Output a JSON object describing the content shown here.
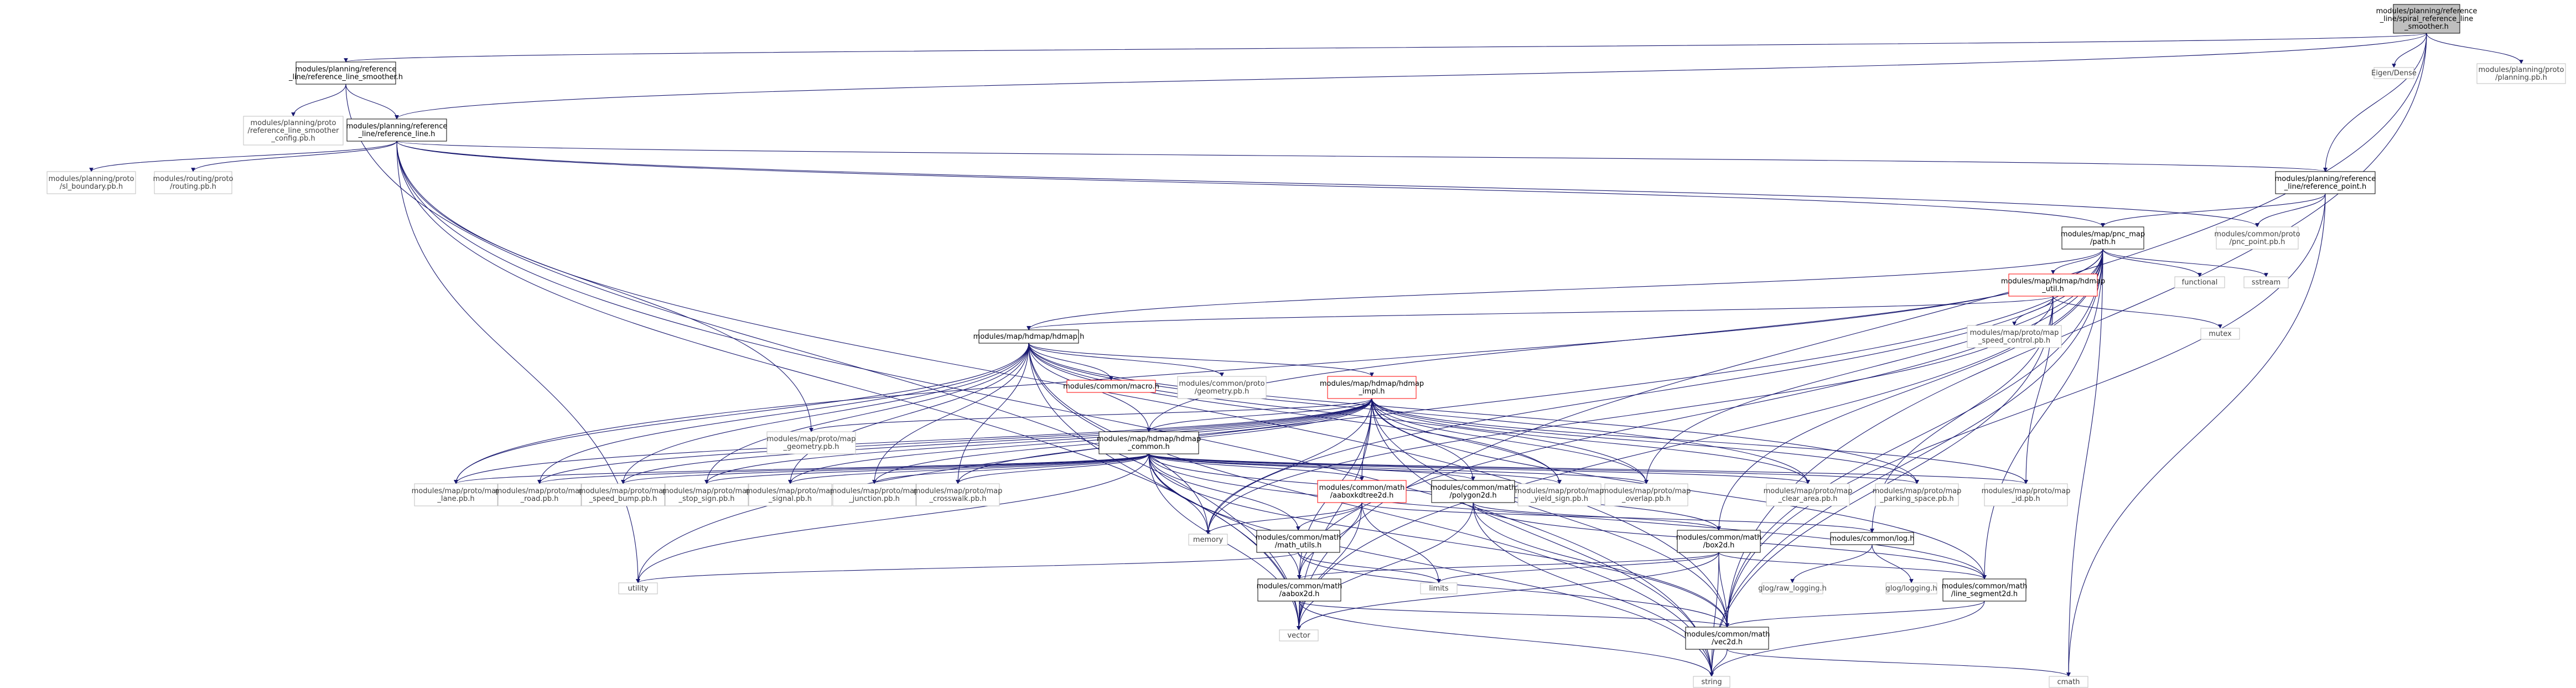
{
  "colors": {
    "edge_blue": "#191970",
    "edge_red": "#8b1a1a",
    "edge_green": "#006400",
    "root_fill": "#bfbfbf",
    "box_black": "#000000",
    "box_gray": "#bfbfbf",
    "box_red": "#ff0000",
    "text": "#000000",
    "text_gray": "#404040"
  },
  "nodes": [
    {
      "id": "root",
      "lines": [
        "modules/planning/reference",
        "_line/spiral_reference_line",
        "_smoother.h"
      ],
      "style": "root"
    },
    {
      "id": "rls",
      "lines": [
        "modules/planning/reference",
        "_line/reference_line_smoother.h"
      ],
      "style": "black"
    },
    {
      "id": "eigen",
      "lines": [
        "Eigen/Dense"
      ],
      "style": "gray"
    },
    {
      "id": "planpb",
      "lines": [
        "modules/planning/proto",
        "/planning.pb.h"
      ],
      "style": "gray"
    },
    {
      "id": "smcfg",
      "lines": [
        "modules/planning/proto",
        "/reference_line_smoother",
        "_config.pb.h"
      ],
      "style": "gray"
    },
    {
      "id": "rl",
      "lines": [
        "modules/planning/reference",
        "_line/reference_line.h"
      ],
      "style": "black"
    },
    {
      "id": "slb",
      "lines": [
        "modules/planning/proto",
        "/sl_boundary.pb.h"
      ],
      "style": "gray"
    },
    {
      "id": "routing",
      "lines": [
        "modules/routing/proto",
        "/routing.pb.h"
      ],
      "style": "gray"
    },
    {
      "id": "rp",
      "lines": [
        "modules/planning/reference",
        "_line/reference_point.h"
      ],
      "style": "black"
    },
    {
      "id": "pncpath",
      "lines": [
        "modules/map/pnc_map",
        "/path.h"
      ],
      "style": "black"
    },
    {
      "id": "pncpoint",
      "lines": [
        "modules/common/proto",
        "/pnc_point.pb.h"
      ],
      "style": "gray"
    },
    {
      "id": "functional",
      "lines": [
        "functional"
      ],
      "style": "gray"
    },
    {
      "id": "sstream",
      "lines": [
        "sstream"
      ],
      "style": "gray"
    },
    {
      "id": "hdutil",
      "lines": [
        "modules/map/hdmap/hdmap",
        "_util.h"
      ],
      "style": "red"
    },
    {
      "id": "mutex",
      "lines": [
        "mutex"
      ],
      "style": "gray"
    },
    {
      "id": "speedctl",
      "lines": [
        "modules/map/proto/map",
        "_speed_control.pb.h"
      ],
      "style": "gray"
    },
    {
      "id": "hdmap",
      "lines": [
        "modules/map/hdmap/hdmap.h"
      ],
      "style": "black"
    },
    {
      "id": "macro",
      "lines": [
        "modules/common/macro.h"
      ],
      "style": "red"
    },
    {
      "id": "geompb",
      "lines": [
        "modules/common/proto",
        "/geometry.pb.h"
      ],
      "style": "gray"
    },
    {
      "id": "impl",
      "lines": [
        "modules/map/hdmap/hdmap",
        "_impl.h"
      ],
      "style": "red"
    },
    {
      "id": "mapgeom",
      "lines": [
        "modules/map/proto/map",
        "_geometry.pb.h"
      ],
      "style": "gray"
    },
    {
      "id": "common",
      "lines": [
        "modules/map/hdmap/hdmap",
        "_common.h"
      ],
      "style": "black"
    },
    {
      "id": "lane",
      "lines": [
        "modules/map/proto/map",
        "_lane.pb.h"
      ],
      "style": "gray"
    },
    {
      "id": "road",
      "lines": [
        "modules/map/proto/map",
        "_road.pb.h"
      ],
      "style": "gray"
    },
    {
      "id": "speedbump",
      "lines": [
        "modules/map/proto/map",
        "_speed_bump.pb.h"
      ],
      "style": "gray"
    },
    {
      "id": "stopsign",
      "lines": [
        "modules/map/proto/map",
        "_stop_sign.pb.h"
      ],
      "style": "gray"
    },
    {
      "id": "signal",
      "lines": [
        "modules/map/proto/map",
        "_signal.pb.h"
      ],
      "style": "gray"
    },
    {
      "id": "junction",
      "lines": [
        "modules/map/proto/map",
        "_junction.pb.h"
      ],
      "style": "gray"
    },
    {
      "id": "crosswalk",
      "lines": [
        "modules/map/proto/map",
        "_crosswalk.pb.h"
      ],
      "style": "gray"
    },
    {
      "id": "kdtree",
      "lines": [
        "modules/common/math",
        "/aaboxkdtree2d.h"
      ],
      "style": "red"
    },
    {
      "id": "polygon",
      "lines": [
        "modules/common/math",
        "/polygon2d.h"
      ],
      "style": "black"
    },
    {
      "id": "yield",
      "lines": [
        "modules/map/proto/map",
        "_yield_sign.pb.h"
      ],
      "style": "gray"
    },
    {
      "id": "overlap",
      "lines": [
        "modules/map/proto/map",
        "_overlap.pb.h"
      ],
      "style": "gray"
    },
    {
      "id": "cleararea",
      "lines": [
        "modules/map/proto/map",
        "_clear_area.pb.h"
      ],
      "style": "gray"
    },
    {
      "id": "parking",
      "lines": [
        "modules/map/proto/map",
        "_parking_space.pb.h"
      ],
      "style": "gray"
    },
    {
      "id": "mapid",
      "lines": [
        "modules/map/proto/map",
        "_id.pb.h"
      ],
      "style": "gray"
    },
    {
      "id": "memory",
      "lines": [
        "memory"
      ],
      "style": "gray"
    },
    {
      "id": "mathutils",
      "lines": [
        "modules/common/math",
        "/math_utils.h"
      ],
      "style": "black"
    },
    {
      "id": "box2d",
      "lines": [
        "modules/common/math",
        "/box2d.h"
      ],
      "style": "black"
    },
    {
      "id": "log",
      "lines": [
        "modules/common/log.h"
      ],
      "style": "black"
    },
    {
      "id": "utility",
      "lines": [
        "utility"
      ],
      "style": "gray"
    },
    {
      "id": "limits",
      "lines": [
        "limits"
      ],
      "style": "gray"
    },
    {
      "id": "rawlog",
      "lines": [
        "glog/raw_logging.h"
      ],
      "style": "gray"
    },
    {
      "id": "glog",
      "lines": [
        "glog/logging.h"
      ],
      "style": "gray"
    },
    {
      "id": "aabox",
      "lines": [
        "modules/common/math",
        "/aabox2d.h"
      ],
      "style": "black"
    },
    {
      "id": "lineseg",
      "lines": [
        "modules/common/math",
        "/line_segment2d.h"
      ],
      "style": "black"
    },
    {
      "id": "vector",
      "lines": [
        "vector"
      ],
      "style": "gray"
    },
    {
      "id": "vec2d",
      "lines": [
        "modules/common/math",
        "/vec2d.h"
      ],
      "style": "black"
    },
    {
      "id": "cmath",
      "lines": [
        "cmath"
      ],
      "style": "gray"
    },
    {
      "id": "string",
      "lines": [
        "string"
      ],
      "style": "gray"
    }
  ],
  "edges": [
    [
      "root",
      "rls"
    ],
    [
      "root",
      "eigen"
    ],
    [
      "root",
      "planpb"
    ],
    [
      "root",
      "rl"
    ],
    [
      "root",
      "rp"
    ],
    [
      "root",
      "vector"
    ],
    [
      "root",
      "vec2d"
    ],
    [
      "rls",
      "smcfg"
    ],
    [
      "rls",
      "rl"
    ],
    [
      "rls",
      "vector"
    ],
    [
      "rl",
      "slb"
    ],
    [
      "rl",
      "routing"
    ],
    [
      "rl",
      "rp"
    ],
    [
      "rl",
      "pncpath"
    ],
    [
      "rl",
      "pncpoint"
    ],
    [
      "rl",
      "mapgeom"
    ],
    [
      "rl",
      "utility"
    ],
    [
      "rl",
      "vector"
    ],
    [
      "rl",
      "string"
    ],
    [
      "rl",
      "vec2d"
    ],
    [
      "rp",
      "pncpath"
    ],
    [
      "rp",
      "pncpoint"
    ],
    [
      "rp",
      "vec2d"
    ],
    [
      "rp",
      "cmath"
    ],
    [
      "pncpath",
      "functional"
    ],
    [
      "pncpath",
      "sstream"
    ],
    [
      "pncpath",
      "hdutil"
    ],
    [
      "pncpath",
      "hdmap"
    ],
    [
      "pncpath",
      "common"
    ],
    [
      "pncpath",
      "lane"
    ],
    [
      "pncpath",
      "memory"
    ],
    [
      "pncpath",
      "utility"
    ],
    [
      "pncpath",
      "vector"
    ],
    [
      "pncpath",
      "string"
    ],
    [
      "pncpath",
      "vec2d"
    ],
    [
      "pncpath",
      "aabox"
    ],
    [
      "pncpath",
      "box2d"
    ],
    [
      "pncpath",
      "lineseg"
    ],
    [
      "pncpath",
      "overlap"
    ],
    [
      "pncpath",
      "cmath"
    ],
    [
      "hdutil",
      "mutex"
    ],
    [
      "hdutil",
      "speedctl"
    ],
    [
      "hdutil",
      "hdmap"
    ],
    [
      "hdutil",
      "mapid"
    ],
    [
      "hdutil",
      "memory"
    ],
    [
      "hdutil",
      "string"
    ],
    [
      "hdutil",
      "log"
    ],
    [
      "hdmap",
      "macro"
    ],
    [
      "hdmap",
      "geompb"
    ],
    [
      "hdmap",
      "impl"
    ],
    [
      "hdmap",
      "common"
    ],
    [
      "hdmap",
      "lane"
    ],
    [
      "hdmap",
      "road"
    ],
    [
      "hdmap",
      "speedbump"
    ],
    [
      "hdmap",
      "stopsign"
    ],
    [
      "hdmap",
      "signal"
    ],
    [
      "hdmap",
      "junction"
    ],
    [
      "hdmap",
      "crosswalk"
    ],
    [
      "hdmap",
      "yield"
    ],
    [
      "hdmap",
      "overlap"
    ],
    [
      "hdmap",
      "cleararea"
    ],
    [
      "hdmap",
      "parking"
    ],
    [
      "hdmap",
      "memory"
    ],
    [
      "hdmap",
      "vector"
    ],
    [
      "hdmap",
      "string"
    ],
    [
      "impl",
      "mapgeom"
    ],
    [
      "impl",
      "common"
    ],
    [
      "impl",
      "kdtree"
    ],
    [
      "impl",
      "polygon"
    ],
    [
      "impl",
      "lane"
    ],
    [
      "impl",
      "road"
    ],
    [
      "impl",
      "speedbump"
    ],
    [
      "impl",
      "stopsign"
    ],
    [
      "impl",
      "signal"
    ],
    [
      "impl",
      "junction"
    ],
    [
      "impl",
      "crosswalk"
    ],
    [
      "impl",
      "yield"
    ],
    [
      "impl",
      "overlap"
    ],
    [
      "impl",
      "cleararea"
    ],
    [
      "impl",
      "parking"
    ],
    [
      "impl",
      "mapid"
    ],
    [
      "impl",
      "memory"
    ],
    [
      "impl",
      "vector"
    ],
    [
      "impl",
      "string"
    ],
    [
      "impl",
      "aabox"
    ],
    [
      "impl",
      "vec2d"
    ],
    [
      "impl",
      "lineseg"
    ],
    [
      "common",
      "lane"
    ],
    [
      "common",
      "road"
    ],
    [
      "common",
      "speedbump"
    ],
    [
      "common",
      "stopsign"
    ],
    [
      "common",
      "signal"
    ],
    [
      "common",
      "junction"
    ],
    [
      "common",
      "crosswalk"
    ],
    [
      "common",
      "kdtree"
    ],
    [
      "common",
      "polygon"
    ],
    [
      "common",
      "yield"
    ],
    [
      "common",
      "overlap"
    ],
    [
      "common",
      "cleararea"
    ],
    [
      "common",
      "parking"
    ],
    [
      "common",
      "mapid"
    ],
    [
      "common",
      "memory"
    ],
    [
      "common",
      "mathutils"
    ],
    [
      "common",
      "utility"
    ],
    [
      "common",
      "aabox"
    ],
    [
      "common",
      "vector"
    ],
    [
      "common",
      "vec2d"
    ],
    [
      "common",
      "string"
    ],
    [
      "common",
      "lineseg"
    ],
    [
      "common",
      "box2d"
    ],
    [
      "kdtree",
      "memory"
    ],
    [
      "kdtree",
      "mathutils"
    ],
    [
      "kdtree",
      "limits"
    ],
    [
      "kdtree",
      "aabox"
    ],
    [
      "kdtree",
      "vector"
    ],
    [
      "kdtree",
      "log"
    ],
    [
      "polygon",
      "box2d"
    ],
    [
      "polygon",
      "lineseg"
    ],
    [
      "polygon",
      "vec2d"
    ],
    [
      "polygon",
      "vector"
    ],
    [
      "polygon",
      "string"
    ],
    [
      "mathutils",
      "utility"
    ],
    [
      "mathutils",
      "limits"
    ],
    [
      "mathutils",
      "vec2d"
    ],
    [
      "box2d",
      "limits"
    ],
    [
      "box2d",
      "aabox"
    ],
    [
      "box2d",
      "vector"
    ],
    [
      "box2d",
      "string"
    ],
    [
      "box2d",
      "lineseg"
    ],
    [
      "box2d",
      "vec2d"
    ],
    [
      "log",
      "rawlog"
    ],
    [
      "log",
      "glog"
    ],
    [
      "aabox",
      "vector"
    ],
    [
      "aabox",
      "vec2d"
    ],
    [
      "aabox",
      "string"
    ],
    [
      "lineseg",
      "vec2d"
    ],
    [
      "lineseg",
      "string"
    ],
    [
      "vec2d",
      "cmath"
    ],
    [
      "vec2d",
      "string"
    ]
  ]
}
